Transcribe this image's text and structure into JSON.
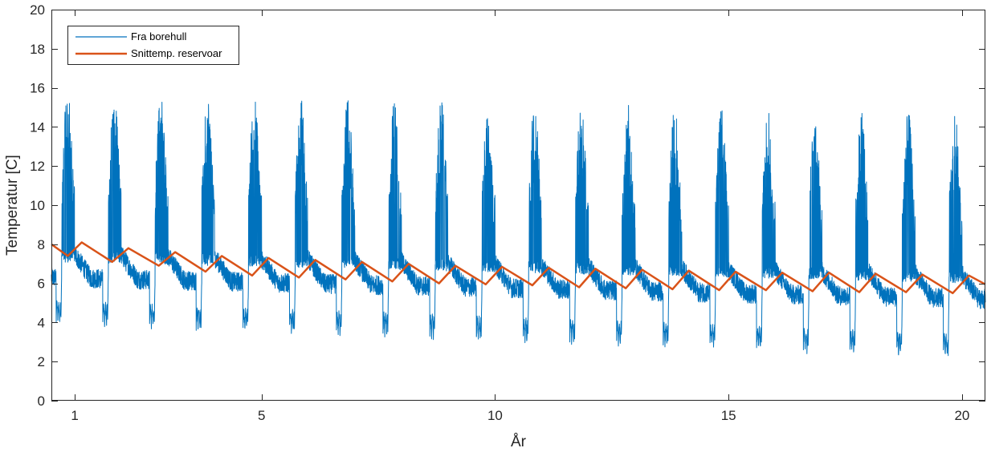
{
  "chart_data": {
    "type": "line",
    "title": "",
    "xlabel": "År",
    "ylabel": "Temperatur [C]",
    "xlim": [
      0.5,
      20.5
    ],
    "ylim": [
      0,
      20
    ],
    "x_ticks": [
      1,
      5,
      10,
      15,
      20
    ],
    "y_ticks": [
      0,
      2,
      4,
      6,
      8,
      10,
      12,
      14,
      16,
      18,
      20
    ],
    "grid": false,
    "legend_position": "top-left",
    "series": [
      {
        "name": "Fra borehull",
        "color": "#0072BD",
        "style": "thin oscillating line",
        "years": 20,
        "baseline_start": 6.3,
        "baseline_end": 5.2,
        "peak_start": 15.1,
        "peak_end": 13.9,
        "trough_start": 3.8,
        "trough_end": 2.0
      },
      {
        "name": "Snittemp. reservoar",
        "color": "#D95319",
        "style": "thick line",
        "points": [
          [
            0.5,
            8.0
          ],
          [
            0.85,
            7.4
          ],
          [
            1.15,
            8.1
          ],
          [
            1.8,
            7.1
          ],
          [
            2.15,
            7.8
          ],
          [
            2.8,
            6.9
          ],
          [
            3.15,
            7.6
          ],
          [
            3.8,
            6.6
          ],
          [
            4.15,
            7.4
          ],
          [
            4.8,
            6.4
          ],
          [
            5.15,
            7.3
          ],
          [
            5.8,
            6.3
          ],
          [
            6.15,
            7.2
          ],
          [
            6.8,
            6.2
          ],
          [
            7.15,
            7.1
          ],
          [
            7.8,
            6.1
          ],
          [
            8.15,
            7.0
          ],
          [
            8.8,
            6.0
          ],
          [
            9.15,
            6.9
          ],
          [
            9.8,
            5.95
          ],
          [
            10.15,
            6.85
          ],
          [
            10.8,
            5.9
          ],
          [
            11.15,
            6.8
          ],
          [
            11.8,
            5.8
          ],
          [
            12.15,
            6.75
          ],
          [
            12.8,
            5.75
          ],
          [
            13.15,
            6.7
          ],
          [
            13.8,
            5.7
          ],
          [
            14.15,
            6.65
          ],
          [
            14.8,
            5.65
          ],
          [
            15.15,
            6.6
          ],
          [
            15.8,
            5.65
          ],
          [
            16.15,
            6.55
          ],
          [
            16.8,
            5.6
          ],
          [
            17.15,
            6.55
          ],
          [
            17.8,
            5.55
          ],
          [
            18.15,
            6.5
          ],
          [
            18.8,
            5.55
          ],
          [
            19.15,
            6.45
          ],
          [
            19.8,
            5.5
          ],
          [
            20.15,
            6.4
          ],
          [
            20.5,
            5.95
          ]
        ]
      }
    ]
  }
}
